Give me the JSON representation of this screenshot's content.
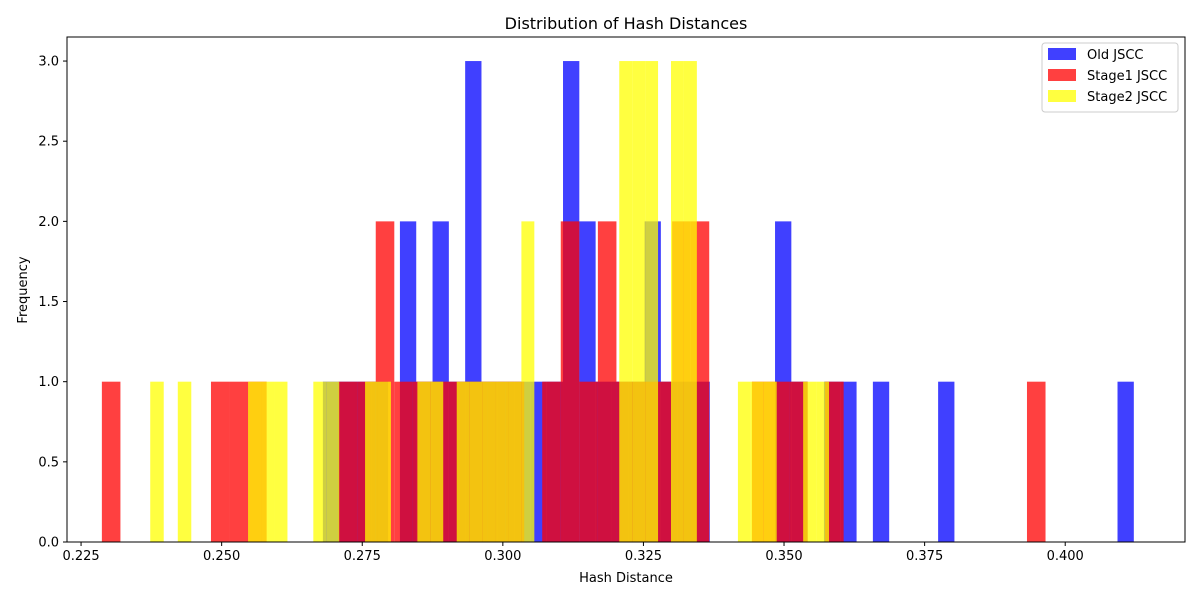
{
  "chart_data": {
    "type": "bar",
    "title": "Distribution of Hash Distances",
    "xlabel": "Hash Distance",
    "ylabel": "Frequency",
    "xlim": [
      0.2225,
      0.4213
    ],
    "ylim": [
      0,
      3.15
    ],
    "xticks": [
      "0.225",
      "0.250",
      "0.275",
      "0.300",
      "0.325",
      "0.350",
      "0.375",
      "0.400"
    ],
    "yticks": [
      "0.0",
      "0.5",
      "1.0",
      "1.5",
      "2.0",
      "2.5",
      "3.0"
    ],
    "legend_position": "top-right",
    "grid": false,
    "series": [
      {
        "name": "Old JSCC",
        "color": "#0000ff",
        "opacity": 0.75,
        "bin_width": 0.00295,
        "bars": [
          [
            0.268,
            0.2709,
            1
          ],
          [
            0.2709,
            0.2738,
            1
          ],
          [
            0.2738,
            0.2767,
            1
          ],
          [
            0.2767,
            0.2796,
            1
          ],
          [
            0.2817,
            0.2846,
            2
          ],
          [
            0.2846,
            0.2875,
            1
          ],
          [
            0.2875,
            0.2904,
            2
          ],
          [
            0.2904,
            0.2933,
            1
          ],
          [
            0.2933,
            0.2962,
            3
          ],
          [
            0.2962,
            0.2991,
            1
          ],
          [
            0.2991,
            0.302,
            1
          ],
          [
            0.302,
            0.3049,
            1
          ],
          [
            0.3049,
            0.3078,
            1
          ],
          [
            0.3078,
            0.3107,
            1
          ],
          [
            0.3107,
            0.3136,
            3
          ],
          [
            0.3136,
            0.3165,
            2
          ],
          [
            0.3165,
            0.3194,
            1
          ],
          [
            0.3194,
            0.3223,
            1
          ],
          [
            0.3223,
            0.3252,
            1
          ],
          [
            0.3252,
            0.3281,
            2
          ],
          [
            0.3281,
            0.331,
            1
          ],
          [
            0.331,
            0.3339,
            1
          ],
          [
            0.3339,
            0.3368,
            1
          ],
          [
            0.3484,
            0.3513,
            2
          ],
          [
            0.3513,
            0.3542,
            1
          ],
          [
            0.3571,
            0.36,
            1
          ],
          [
            0.36,
            0.3629,
            1
          ],
          [
            0.3658,
            0.3687,
            1
          ],
          [
            0.3774,
            0.3803,
            1
          ],
          [
            0.4093,
            0.4122,
            1
          ]
        ]
      },
      {
        "name": "Stage1 JSCC",
        "color": "#ff0000",
        "opacity": 0.75,
        "bin_width": 0.00325,
        "bars": [
          [
            0.2287,
            0.232,
            1
          ],
          [
            0.2481,
            0.2514,
            1
          ],
          [
            0.2514,
            0.2547,
            1
          ],
          [
            0.2547,
            0.258,
            1
          ],
          [
            0.2708,
            0.2741,
            1
          ],
          [
            0.2741,
            0.2774,
            1
          ],
          [
            0.2774,
            0.2807,
            2
          ],
          [
            0.2807,
            0.284,
            1
          ],
          [
            0.284,
            0.2873,
            1
          ],
          [
            0.2873,
            0.2906,
            1
          ],
          [
            0.2906,
            0.2939,
            1
          ],
          [
            0.2939,
            0.2972,
            1
          ],
          [
            0.2972,
            0.3005,
            1
          ],
          [
            0.3005,
            0.3038,
            1
          ],
          [
            0.307,
            0.3103,
            1
          ],
          [
            0.3103,
            0.3136,
            2
          ],
          [
            0.3136,
            0.3169,
            1
          ],
          [
            0.3169,
            0.3202,
            2
          ],
          [
            0.3202,
            0.3235,
            1
          ],
          [
            0.3235,
            0.3268,
            1
          ],
          [
            0.3268,
            0.3301,
            1
          ],
          [
            0.3301,
            0.3334,
            2
          ],
          [
            0.3334,
            0.3367,
            2
          ],
          [
            0.3443,
            0.3476,
            1
          ],
          [
            0.3476,
            0.3509,
            1
          ],
          [
            0.3509,
            0.3542,
            1
          ],
          [
            0.3573,
            0.3606,
            1
          ],
          [
            0.3932,
            0.3965,
            1
          ]
        ]
      },
      {
        "name": "Stage2 JSCC",
        "color": "#ffff00",
        "opacity": 0.75,
        "bin_width": 0.00235,
        "bars": [
          [
            0.2373,
            0.2397,
            1
          ],
          [
            0.2422,
            0.2446,
            1
          ],
          [
            0.2547,
            0.257,
            1
          ],
          [
            0.257,
            0.2594,
            1
          ],
          [
            0.2594,
            0.2617,
            1
          ],
          [
            0.2663,
            0.2686,
            1
          ],
          [
            0.2686,
            0.2709,
            1
          ],
          [
            0.2755,
            0.2778,
            1
          ],
          [
            0.2778,
            0.2801,
            1
          ],
          [
            0.2848,
            0.2871,
            1
          ],
          [
            0.2871,
            0.2894,
            1
          ],
          [
            0.2918,
            0.2941,
            1
          ],
          [
            0.2941,
            0.2964,
            1
          ],
          [
            0.2964,
            0.2987,
            1
          ],
          [
            0.2987,
            0.301,
            1
          ],
          [
            0.301,
            0.3033,
            1
          ],
          [
            0.3033,
            0.3056,
            2
          ],
          [
            0.3207,
            0.323,
            3
          ],
          [
            0.323,
            0.3253,
            3
          ],
          [
            0.3253,
            0.3276,
            3
          ],
          [
            0.3299,
            0.3322,
            3
          ],
          [
            0.3322,
            0.3345,
            3
          ],
          [
            0.3418,
            0.3441,
            1
          ],
          [
            0.3441,
            0.3464,
            1
          ],
          [
            0.3464,
            0.3487,
            1
          ],
          [
            0.3534,
            0.3557,
            1
          ],
          [
            0.3557,
            0.358,
            1
          ]
        ]
      }
    ]
  }
}
